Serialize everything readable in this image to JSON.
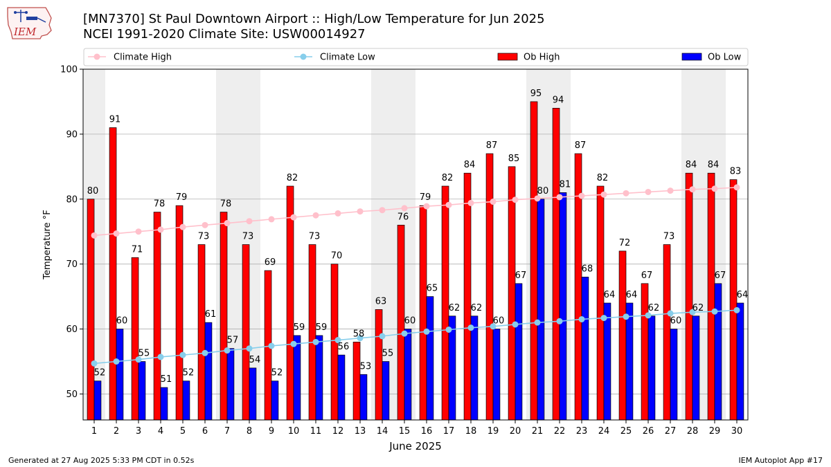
{
  "header": {
    "title_line1": "[MN7370] St Paul Downtown Airport :: High/Low Temperature for Jun 2025",
    "title_line2": "NCEI 1991-2020 Climate Site: USW00014927",
    "logo_text": "IEM"
  },
  "footer": {
    "generated": "Generated at 27 Aug 2025 5:33 PM CDT in 0.52s",
    "app": "IEM Autoplot App #17"
  },
  "colors": {
    "ob_high": "#ff0000",
    "ob_low": "#0000ff",
    "climate_high": "#ffc0cb",
    "climate_low": "#87ceeb",
    "weekend_shade": "#eeeeee",
    "grid": "#b0b0b0"
  },
  "chart_data": {
    "type": "bar",
    "xlabel": "June 2025",
    "ylabel": "Temperature °F",
    "ylim": [
      46,
      100
    ],
    "yticks": [
      50,
      60,
      70,
      80,
      90,
      100
    ],
    "grid": "horizontal",
    "legend_position": "top",
    "x": [
      1,
      2,
      3,
      4,
      5,
      6,
      7,
      8,
      9,
      10,
      11,
      12,
      13,
      14,
      15,
      16,
      17,
      18,
      19,
      20,
      21,
      22,
      23,
      24,
      25,
      26,
      27,
      28,
      29,
      30
    ],
    "shaded_days": [
      1,
      7,
      8,
      14,
      15,
      21,
      22,
      28,
      29
    ],
    "series": [
      {
        "name": "Climate High",
        "kind": "line",
        "values": [
          74.4,
          74.7,
          75.0,
          75.3,
          75.7,
          76.0,
          76.3,
          76.6,
          76.9,
          77.2,
          77.5,
          77.8,
          78.1,
          78.3,
          78.6,
          78.9,
          79.1,
          79.4,
          79.6,
          79.9,
          80.1,
          80.3,
          80.5,
          80.7,
          80.9,
          81.1,
          81.3,
          81.5,
          81.6,
          81.8
        ]
      },
      {
        "name": "Climate Low",
        "kind": "line",
        "values": [
          54.7,
          55.0,
          55.3,
          55.7,
          56.0,
          56.3,
          56.7,
          57.0,
          57.4,
          57.7,
          58.0,
          58.3,
          58.6,
          58.9,
          59.3,
          59.6,
          59.9,
          60.2,
          60.4,
          60.7,
          61.0,
          61.2,
          61.5,
          61.7,
          61.9,
          62.1,
          62.4,
          62.6,
          62.7,
          62.9
        ]
      },
      {
        "name": "Ob High",
        "kind": "bar",
        "values": [
          80,
          91,
          71,
          78,
          79,
          73,
          78,
          73,
          69,
          82,
          73,
          70,
          58,
          63,
          76,
          79,
          82,
          84,
          87,
          85,
          95,
          94,
          87,
          82,
          72,
          67,
          73,
          84,
          84,
          83
        ]
      },
      {
        "name": "Ob Low",
        "kind": "bar",
        "values": [
          52,
          60,
          55,
          51,
          52,
          61,
          57,
          54,
          52,
          59,
          59,
          56,
          53,
          55,
          60,
          65,
          62,
          62,
          60,
          67,
          80,
          81,
          68,
          64,
          64,
          62,
          60,
          62,
          67,
          64
        ]
      }
    ]
  }
}
